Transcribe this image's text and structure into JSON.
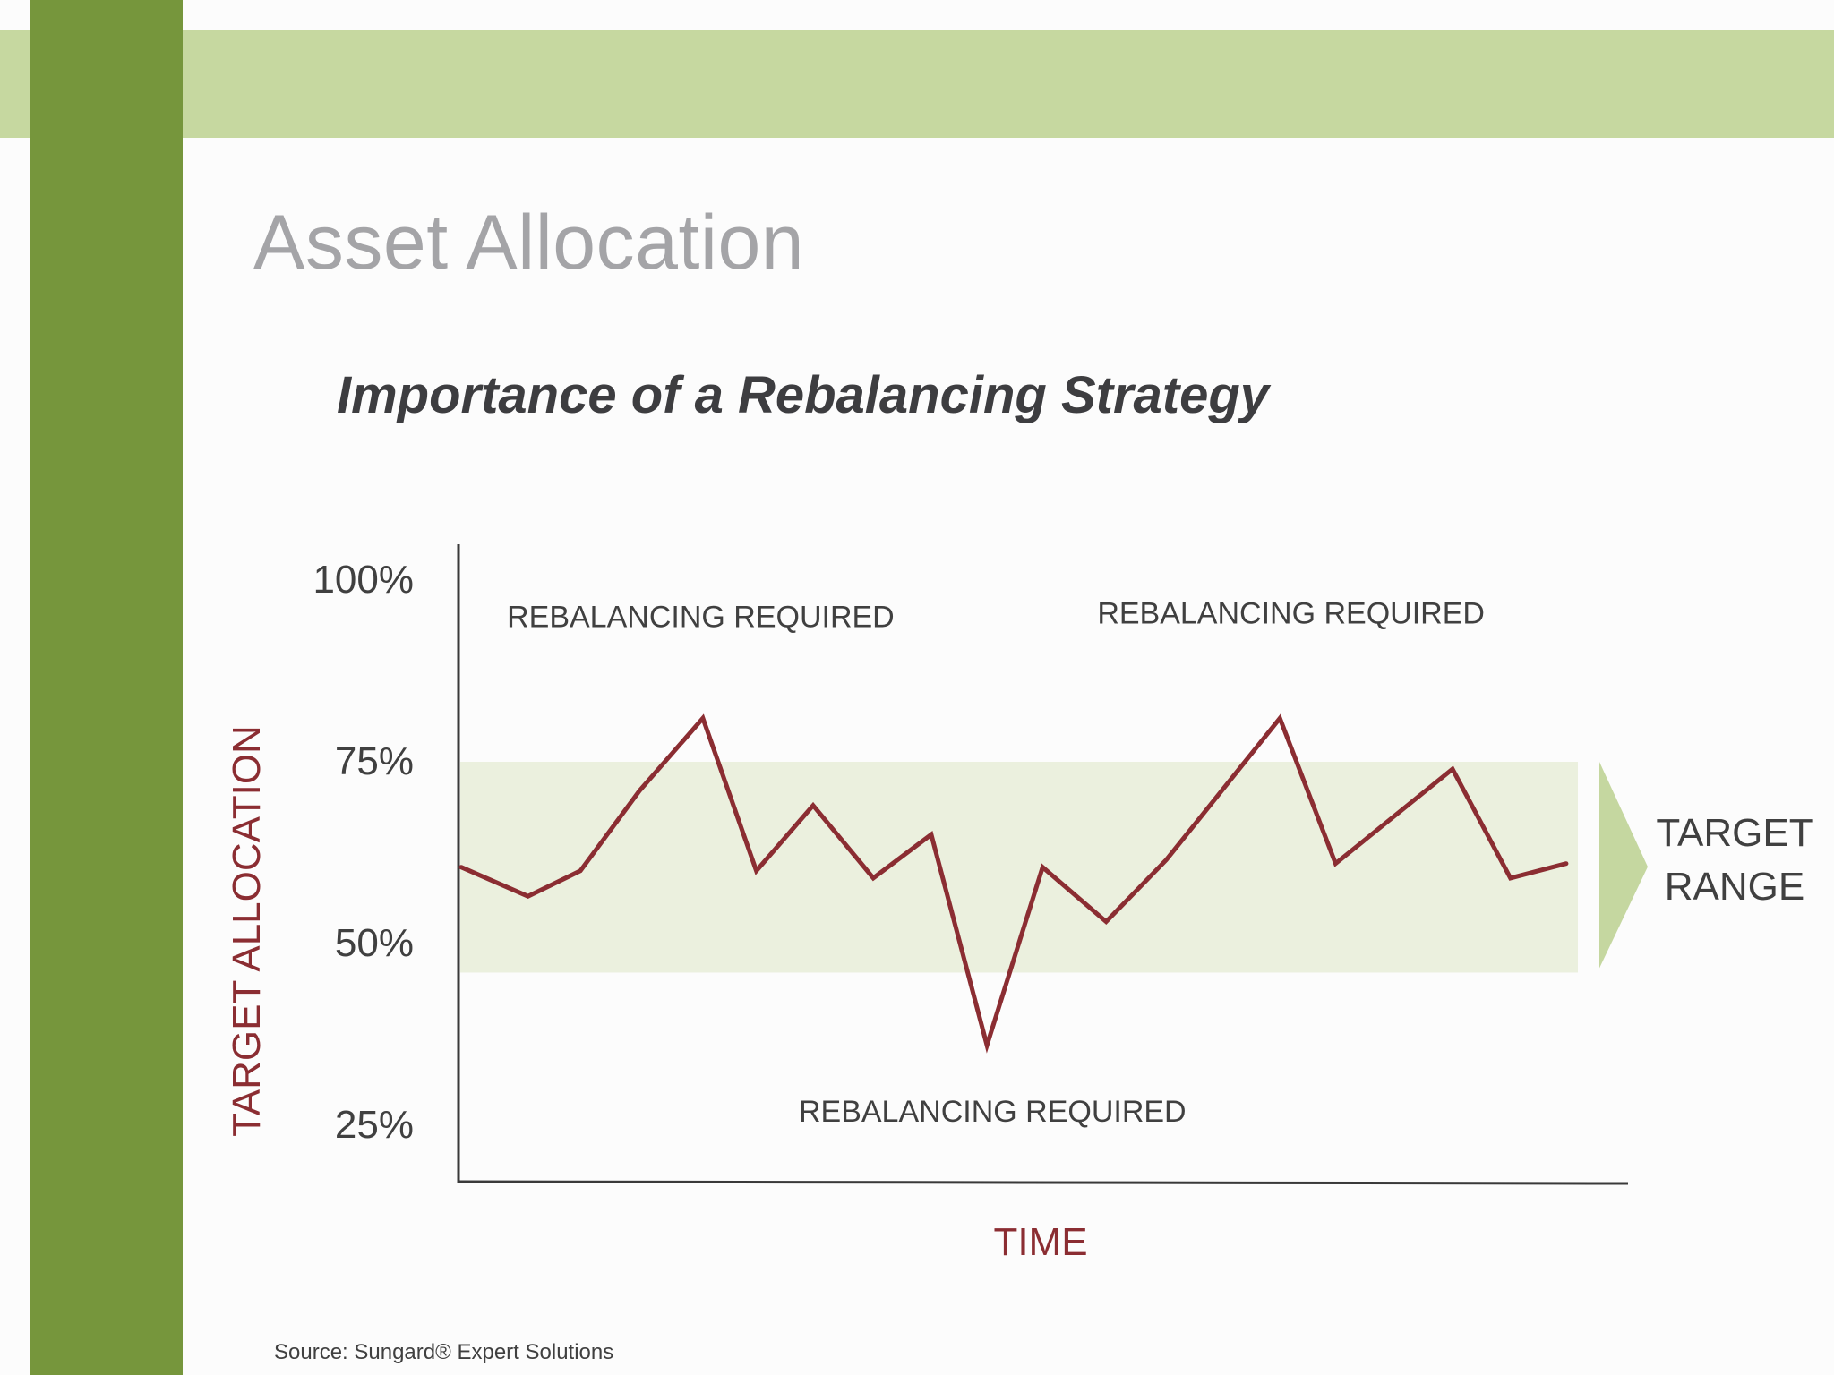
{
  "slide": {
    "title": "Asset Allocation",
    "source": "Source:  Sungard® Expert Solutions",
    "colors": {
      "top_band": "#c6d8a0",
      "side_bar": "#76963c",
      "title": "#a4a4a7",
      "line": "#8b2d32",
      "target_band": "#ebf0de",
      "arrow": "#c5d7a0",
      "axis_label": "#8b2d32"
    }
  },
  "chart_data": {
    "type": "line",
    "title": "Importance of a Rebalancing Strategy",
    "xlabel": "TIME",
    "ylabel": "TARGET ALLOCATION",
    "ylim": [
      25,
      100
    ],
    "yticks": [
      {
        "value": 100,
        "label": "100%"
      },
      {
        "value": 75,
        "label": "75%"
      },
      {
        "value": 50,
        "label": "50%"
      },
      {
        "value": 25,
        "label": "25%"
      }
    ],
    "target_range": {
      "low": 46,
      "high": 75,
      "label_lines": [
        "TARGET",
        "RANGE"
      ]
    },
    "series": [
      {
        "x": [
          0,
          0.6,
          1.07,
          1.6,
          2.17,
          2.65,
          3.16,
          3.7,
          4.22,
          4.72,
          5.22,
          5.79,
          6.33,
          7.35,
          7.85,
          8.9,
          9.42,
          9.92
        ],
        "values": [
          60.5,
          56.5,
          60,
          71,
          81,
          60,
          69,
          59,
          65,
          36,
          60.5,
          53,
          61.5,
          81,
          61,
          74,
          59,
          61
        ]
      }
    ],
    "annotations": [
      {
        "text": "REBALANCING REQUIRED",
        "x": 2.15,
        "y": 95
      },
      {
        "text": "REBALANCING REQUIRED",
        "x": 7.45,
        "y": 95.5
      },
      {
        "text": "REBALANCING REQUIRED",
        "x": 4.77,
        "y": 27
      }
    ]
  }
}
